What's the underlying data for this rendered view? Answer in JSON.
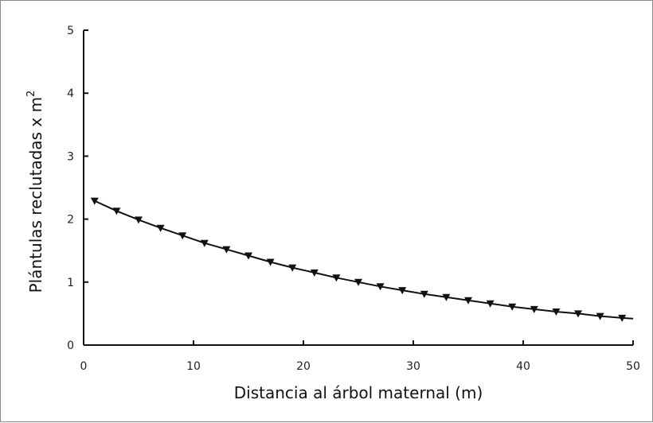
{
  "chart_data": {
    "type": "line",
    "xlabel": "Distancia al árbol maternal (m)",
    "ylabel_main": "Plántulas reclutadas x m",
    "ylabel_sup": "2",
    "xlim": [
      0,
      50
    ],
    "ylim": [
      0,
      5
    ],
    "xticks": [
      0,
      10,
      20,
      30,
      40,
      50
    ],
    "yticks": [
      0,
      1,
      2,
      3,
      4,
      5
    ],
    "grid": false,
    "marker": "triangle-down",
    "curve_x": [
      1,
      3,
      5,
      7,
      9,
      11,
      13,
      15,
      17,
      19,
      21,
      23,
      25,
      27,
      29,
      31,
      33,
      35,
      37,
      39,
      41,
      43,
      45,
      47,
      49,
      50
    ],
    "curve_y": [
      2.29,
      2.13,
      1.99,
      1.86,
      1.74,
      1.62,
      1.52,
      1.42,
      1.32,
      1.23,
      1.15,
      1.07,
      1.0,
      0.93,
      0.87,
      0.81,
      0.76,
      0.71,
      0.66,
      0.61,
      0.57,
      0.53,
      0.5,
      0.46,
      0.43,
      0.42
    ],
    "points_x": [
      1,
      3,
      5,
      7,
      9,
      11,
      13,
      15,
      17,
      19,
      21,
      23,
      25,
      27,
      29,
      31,
      33,
      35,
      37,
      39,
      41,
      43,
      45,
      47,
      49
    ],
    "points_y": [
      2.29,
      2.13,
      1.99,
      1.86,
      1.74,
      1.62,
      1.52,
      1.42,
      1.32,
      1.23,
      1.15,
      1.07,
      1.0,
      0.93,
      0.87,
      0.81,
      0.76,
      0.71,
      0.66,
      0.61,
      0.57,
      0.53,
      0.5,
      0.46,
      0.43
    ]
  }
}
